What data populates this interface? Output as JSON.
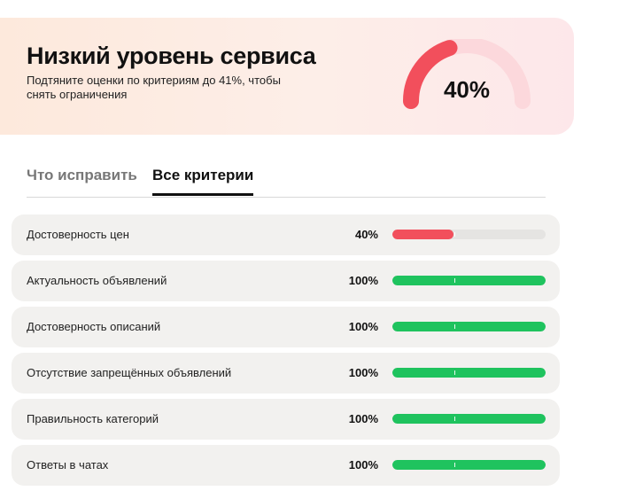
{
  "banner": {
    "title": "Низкий уровень сервиса",
    "subtitle": "Подтяните оценки по критериям до 41%, чтобы снять ограничения",
    "gauge_percent": 40,
    "gauge_label": "40%",
    "colors": {
      "gauge_fill": "#f24f5c",
      "gauge_track": "#fcd8dc"
    }
  },
  "tabs": [
    {
      "label": "Что исправить",
      "active": false
    },
    {
      "label": "Все критерии",
      "active": true
    }
  ],
  "criteria": [
    {
      "label": "Достоверность цен",
      "value_label": "40%",
      "percent": 40,
      "color": "#f24f5c"
    },
    {
      "label": "Актуальность объявлений",
      "value_label": "100%",
      "percent": 100,
      "color": "#1fc35e"
    },
    {
      "label": "Достоверность описаний",
      "value_label": "100%",
      "percent": 100,
      "color": "#1fc35e"
    },
    {
      "label": "Отсутствие запрещённых объявлений",
      "value_label": "100%",
      "percent": 100,
      "color": "#1fc35e"
    },
    {
      "label": "Правильность категорий",
      "value_label": "100%",
      "percent": 100,
      "color": "#1fc35e"
    },
    {
      "label": "Ответы в чатах",
      "value_label": "100%",
      "percent": 100,
      "color": "#1fc35e"
    }
  ]
}
